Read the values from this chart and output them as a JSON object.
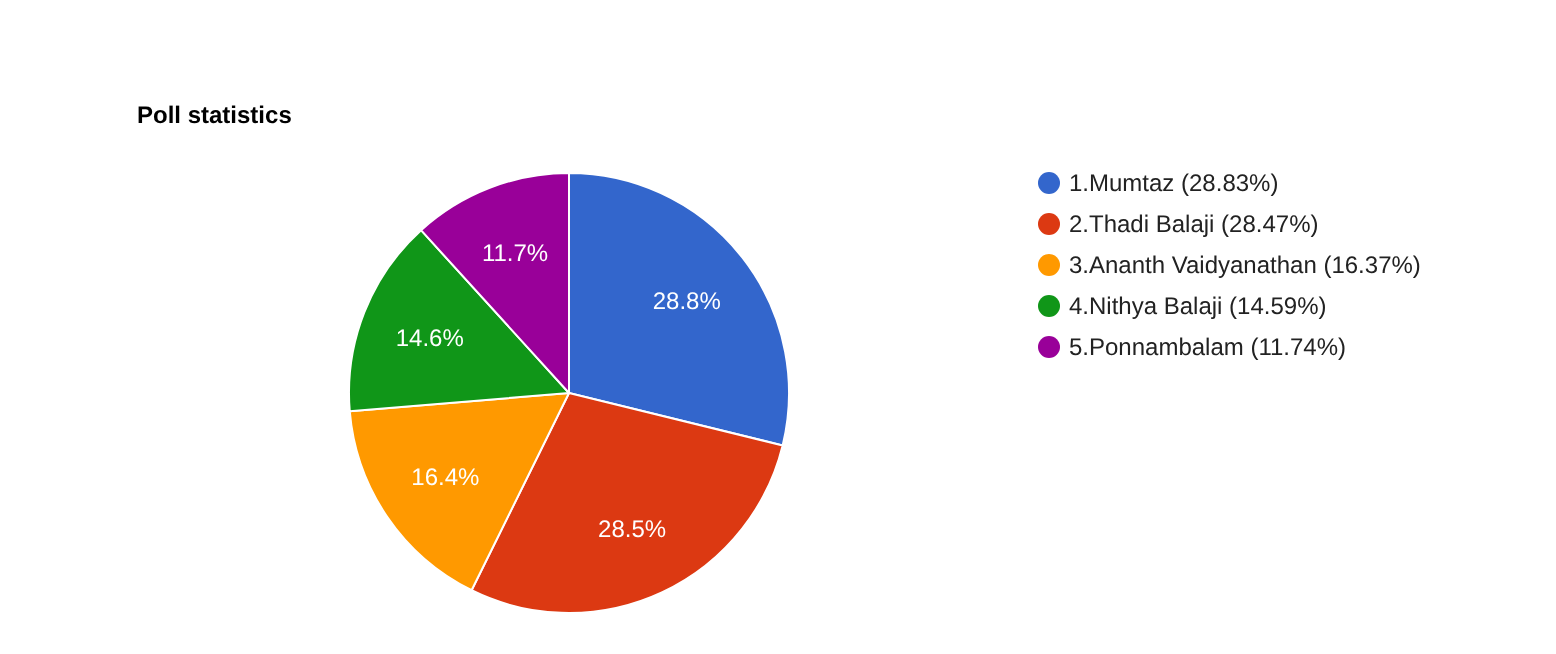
{
  "chart_data": {
    "type": "pie",
    "title": "Poll statistics",
    "categories": [
      "1.Mumtaz (28.83%)",
      "2.Thadi Balaji (28.47%)",
      "3.Ananth Vaidyanathan (16.37%)",
      "4.Nithya Balaji (14.59%)",
      "5.Ponnambalam (11.74%)"
    ],
    "values": [
      28.83,
      28.47,
      16.37,
      14.59,
      11.74
    ],
    "value_labels": [
      "28.8%",
      "28.5%",
      "16.4%",
      "14.6%",
      "11.7%"
    ],
    "colors": [
      "#3366cc",
      "#dc3912",
      "#ff9900",
      "#109618",
      "#990099"
    ],
    "legend": "right"
  }
}
